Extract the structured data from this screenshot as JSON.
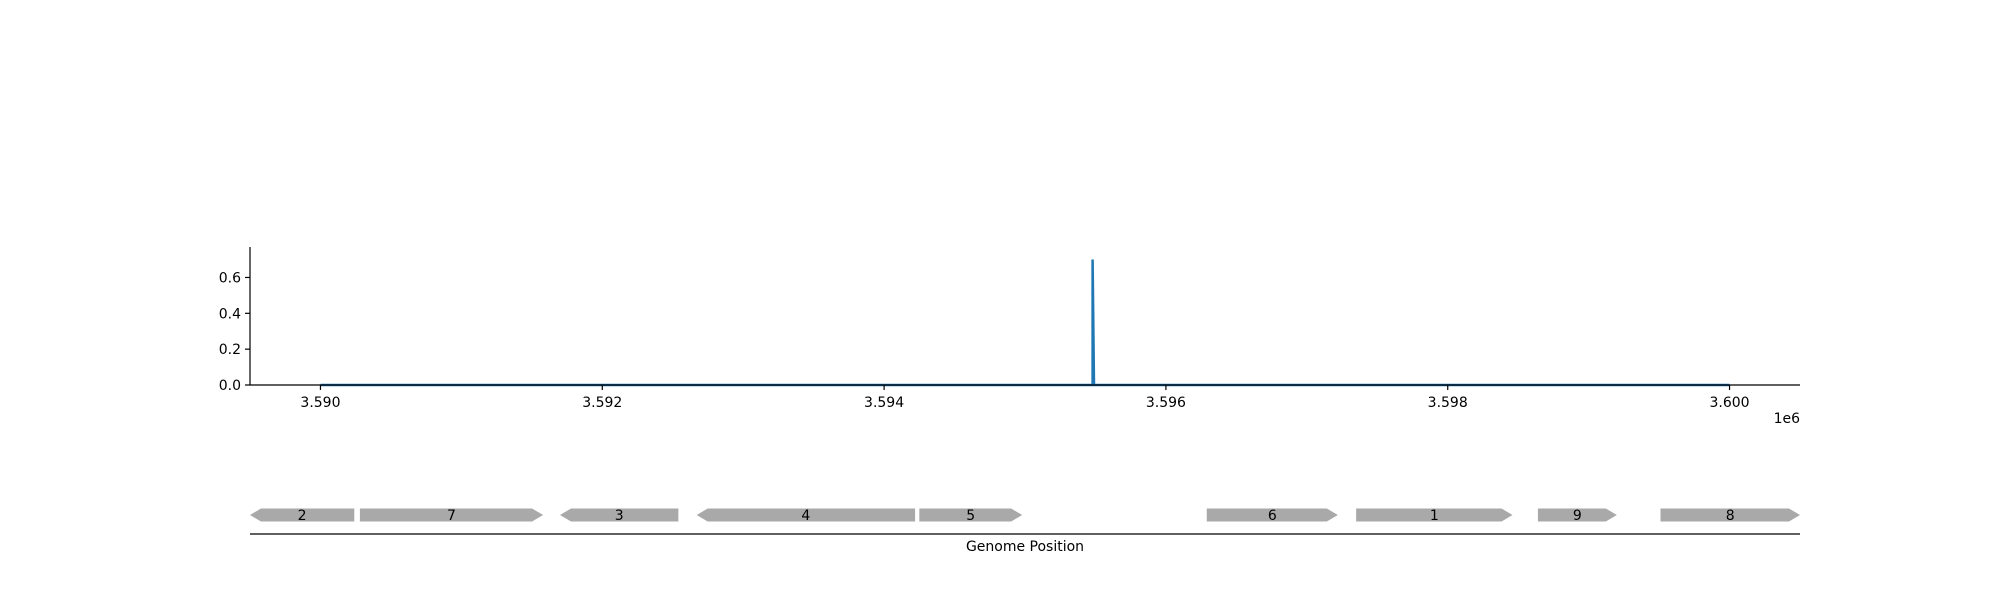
{
  "chart_data": [
    {
      "type": "line",
      "title": "",
      "xlabel": "",
      "ylabel": "",
      "x_offset_label": "1e6",
      "xlim": [
        3589500,
        3600500
      ],
      "ylim": [
        0,
        0.77
      ],
      "xticks": [
        3590000,
        3592000,
        3594000,
        3596000,
        3598000,
        3600000
      ],
      "xtick_labels": [
        "3.590",
        "3.592",
        "3.594",
        "3.596",
        "3.598",
        "3.600"
      ],
      "yticks": [
        0.0,
        0.2,
        0.4,
        0.6
      ],
      "ytick_labels": [
        "0.0",
        "0.2",
        "0.4",
        "0.6"
      ],
      "grid": false,
      "series": [
        {
          "color": "#1f77b4",
          "x": [
            3590000,
            3595470,
            3595480,
            3595480,
            3595490,
            3600000
          ],
          "y": [
            0,
            0,
            0,
            0.7,
            0,
            0
          ]
        }
      ]
    },
    {
      "type": "gene-track",
      "xlabel": "Genome Position",
      "xlim": [
        3589500,
        3600500
      ],
      "color": "#a9a9a9",
      "genes": [
        {
          "label": "2",
          "start": 3589500,
          "end": 3590240,
          "strand": -1
        },
        {
          "label": "7",
          "start": 3590280,
          "end": 3591580,
          "strand": 1
        },
        {
          "label": "3",
          "start": 3591700,
          "end": 3592540,
          "strand": -1
        },
        {
          "label": "4",
          "start": 3592670,
          "end": 3594220,
          "strand": -1
        },
        {
          "label": "5",
          "start": 3594250,
          "end": 3594980,
          "strand": 1
        },
        {
          "label": "6",
          "start": 3596290,
          "end": 3597220,
          "strand": 1
        },
        {
          "label": "1",
          "start": 3597350,
          "end": 3598460,
          "strand": 1
        },
        {
          "label": "9",
          "start": 3598640,
          "end": 3599200,
          "strand": 1
        },
        {
          "label": "8",
          "start": 3599510,
          "end": 3600500,
          "strand": 1
        }
      ]
    }
  ]
}
